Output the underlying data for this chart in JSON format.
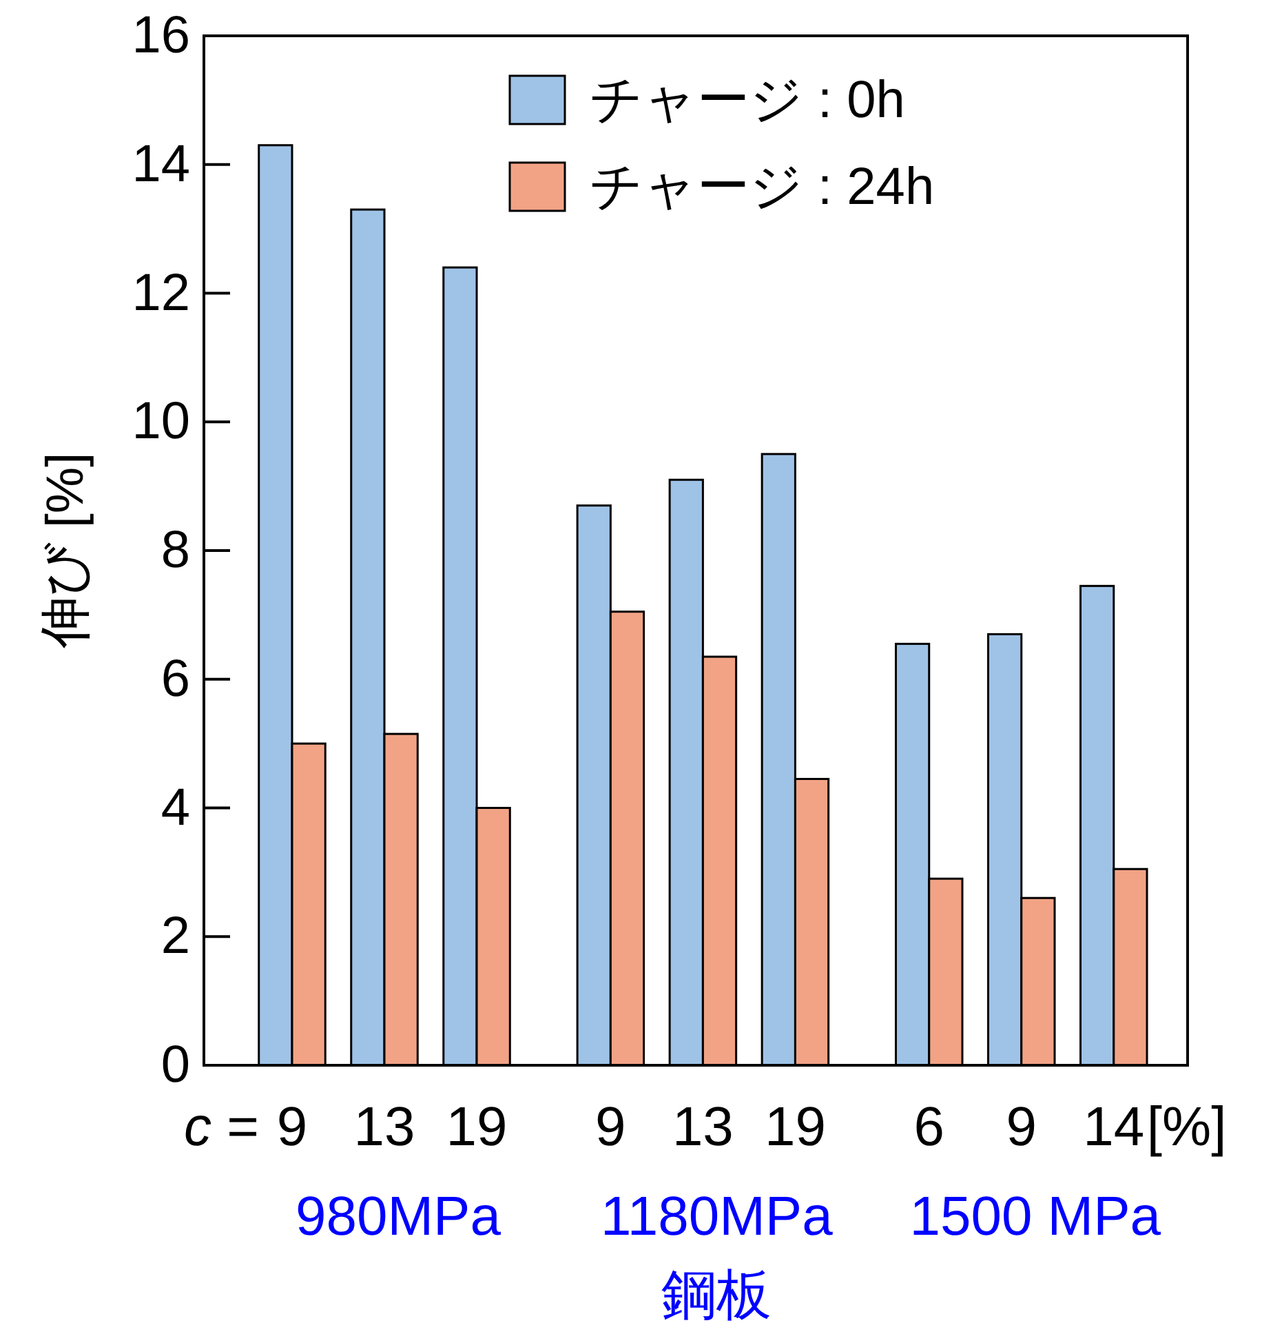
{
  "chart_data": {
    "type": "bar",
    "ylabel": "伸び [%]",
    "xlabel": "鋼板",
    "categories": [
      "9",
      "13",
      "19",
      "9",
      "13",
      "19",
      "6",
      "9",
      "14"
    ],
    "series": [
      {
        "name": "チャージ : 0h",
        "color": "#9fc3e7",
        "values": [
          14.3,
          13.3,
          12.4,
          8.7,
          9.1,
          9.5,
          6.55,
          6.7,
          7.45
        ]
      },
      {
        "name": "チャージ : 24h",
        "color": "#f2a386",
        "values": [
          5.0,
          5.15,
          4.0,
          7.05,
          6.35,
          4.45,
          2.9,
          2.6,
          3.05
        ]
      }
    ],
    "annotations": [
      "c =",
      "[%]",
      "980MPa",
      "1180MPa",
      "1500 MPa"
    ],
    "ylim": [
      0,
      16
    ],
    "yticks": [
      0,
      2,
      4,
      6,
      8,
      10,
      12,
      14,
      16
    ],
    "legend": "top right",
    "grid": false
  }
}
